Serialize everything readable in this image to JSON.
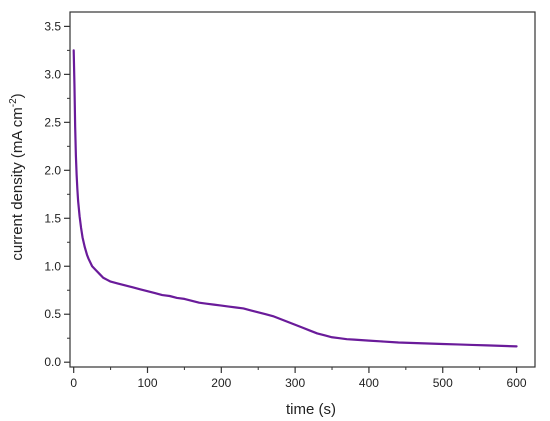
{
  "chart_data": {
    "type": "line",
    "xlabel": "time (s)",
    "ylabel": {
      "main": "current density (mA cm",
      "superscript": "-2",
      "close": ")"
    },
    "xlim": [
      -5,
      625
    ],
    "ylim": [
      -0.05,
      3.65
    ],
    "xticks": [
      "0",
      "100",
      "200",
      "300",
      "400",
      "500",
      "600"
    ],
    "yticks": [
      "0.0",
      "0.5",
      "1.0",
      "1.5",
      "2.0",
      "2.5",
      "3.0",
      "3.5"
    ],
    "grid": false,
    "legend": "none",
    "series": [
      {
        "color": "#6a1b9a",
        "x": [
          0,
          1,
          2,
          3,
          4,
          5,
          6,
          8,
          10,
          12,
          15,
          18,
          20,
          25,
          30,
          35,
          40,
          45,
          50,
          60,
          70,
          80,
          90,
          100,
          110,
          120,
          130,
          140,
          150,
          160,
          170,
          180,
          190,
          200,
          210,
          220,
          230,
          240,
          250,
          260,
          270,
          280,
          290,
          300,
          310,
          320,
          330,
          340,
          350,
          360,
          370,
          380,
          390,
          400,
          420,
          440,
          460,
          480,
          500,
          520,
          540,
          560,
          580,
          600
        ],
        "y": [
          3.25,
          2.9,
          2.45,
          2.15,
          1.95,
          1.8,
          1.68,
          1.52,
          1.4,
          1.3,
          1.2,
          1.12,
          1.08,
          1.0,
          0.96,
          0.92,
          0.88,
          0.86,
          0.84,
          0.82,
          0.8,
          0.78,
          0.76,
          0.74,
          0.72,
          0.7,
          0.69,
          0.67,
          0.66,
          0.64,
          0.62,
          0.61,
          0.6,
          0.59,
          0.58,
          0.57,
          0.56,
          0.54,
          0.52,
          0.5,
          0.48,
          0.45,
          0.42,
          0.39,
          0.36,
          0.33,
          0.3,
          0.28,
          0.26,
          0.25,
          0.24,
          0.235,
          0.23,
          0.225,
          0.215,
          0.205,
          0.2,
          0.195,
          0.19,
          0.185,
          0.18,
          0.175,
          0.17,
          0.165
        ]
      }
    ]
  }
}
